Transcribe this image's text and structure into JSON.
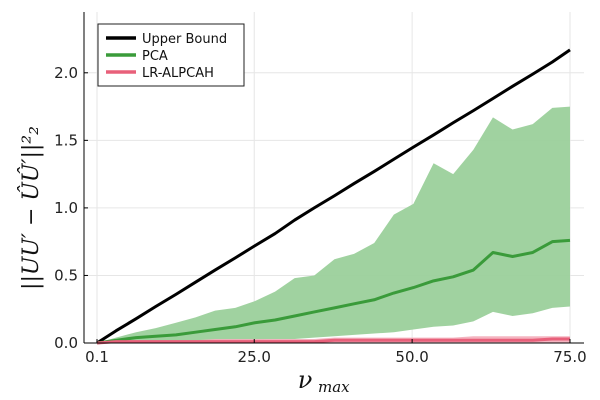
{
  "chart_data": {
    "type": "line",
    "title": "",
    "xlabel_main": "ν",
    "xlabel_sub": "max",
    "ylabel": "||UU′ − ÛÛ′||²₂",
    "xlim": [
      0.1,
      75.0
    ],
    "ylim": [
      0.0,
      2.45
    ],
    "grid": true,
    "legend_position": "top-left",
    "x_ticks": [
      {
        "value": 0.1,
        "label": "0.1"
      },
      {
        "value": 25.0,
        "label": "25.0"
      },
      {
        "value": 50.0,
        "label": "50.0"
      },
      {
        "value": 75.0,
        "label": "75.0"
      }
    ],
    "y_ticks": [
      {
        "value": 0.0,
        "label": "0.0"
      },
      {
        "value": 0.5,
        "label": "0.5"
      },
      {
        "value": 1.0,
        "label": "1.0"
      },
      {
        "value": 1.5,
        "label": "1.5"
      },
      {
        "value": 2.0,
        "label": "2.0"
      }
    ],
    "x": [
      0.1,
      3.1,
      6.3,
      9.4,
      12.6,
      15.7,
      18.8,
      22.0,
      25.1,
      28.3,
      31.4,
      34.5,
      37.7,
      40.8,
      44.0,
      47.1,
      50.2,
      53.4,
      56.5,
      59.7,
      62.8,
      65.9,
      69.1,
      72.2,
      75.0
    ],
    "series": [
      {
        "name": "Upper Bound",
        "color": "#000000",
        "values": [
          0.0,
          0.09,
          0.18,
          0.27,
          0.36,
          0.45,
          0.54,
          0.63,
          0.72,
          0.81,
          0.91,
          1.0,
          1.09,
          1.18,
          1.27,
          1.36,
          1.45,
          1.54,
          1.63,
          1.72,
          1.81,
          1.9,
          1.99,
          2.08,
          2.17
        ]
      },
      {
        "name": "PCA",
        "color": "#3a9b3a",
        "band_color": "#9bd09b",
        "values": [
          0.0,
          0.02,
          0.04,
          0.05,
          0.06,
          0.08,
          0.1,
          0.12,
          0.15,
          0.17,
          0.2,
          0.23,
          0.26,
          0.29,
          0.32,
          0.37,
          0.41,
          0.46,
          0.49,
          0.54,
          0.67,
          0.64,
          0.67,
          0.75,
          0.76
        ],
        "band_upper": [
          0.0,
          0.04,
          0.08,
          0.11,
          0.15,
          0.19,
          0.24,
          0.26,
          0.31,
          0.38,
          0.48,
          0.5,
          0.62,
          0.66,
          0.74,
          0.95,
          1.03,
          1.33,
          1.25,
          1.43,
          1.67,
          1.58,
          1.62,
          1.74,
          1.75
        ],
        "band_lower": [
          0.0,
          0.0,
          0.01,
          0.01,
          0.01,
          0.01,
          0.02,
          0.02,
          0.02,
          0.03,
          0.03,
          0.04,
          0.05,
          0.06,
          0.07,
          0.08,
          0.1,
          0.12,
          0.13,
          0.16,
          0.23,
          0.2,
          0.22,
          0.26,
          0.27
        ]
      },
      {
        "name": "LR-ALPCAH",
        "color": "#e8607a",
        "band_color": "#f3b0bd",
        "values": [
          0.0,
          0.01,
          0.01,
          0.01,
          0.01,
          0.01,
          0.01,
          0.01,
          0.01,
          0.01,
          0.01,
          0.01,
          0.02,
          0.02,
          0.02,
          0.02,
          0.02,
          0.02,
          0.02,
          0.02,
          0.02,
          0.02,
          0.02,
          0.03,
          0.03
        ],
        "band_upper": [
          0.0,
          0.02,
          0.02,
          0.02,
          0.02,
          0.02,
          0.03,
          0.03,
          0.03,
          0.03,
          0.03,
          0.03,
          0.04,
          0.04,
          0.04,
          0.04,
          0.04,
          0.04,
          0.04,
          0.05,
          0.05,
          0.05,
          0.05,
          0.05,
          0.05
        ],
        "band_lower": [
          0.0,
          0.0,
          0.0,
          0.0,
          0.0,
          0.0,
          0.0,
          0.0,
          0.0,
          0.0,
          0.0,
          0.0,
          0.0,
          0.0,
          0.0,
          0.0,
          0.0,
          0.0,
          0.0,
          0.0,
          0.0,
          0.0,
          0.0,
          0.0,
          0.0
        ]
      }
    ]
  }
}
